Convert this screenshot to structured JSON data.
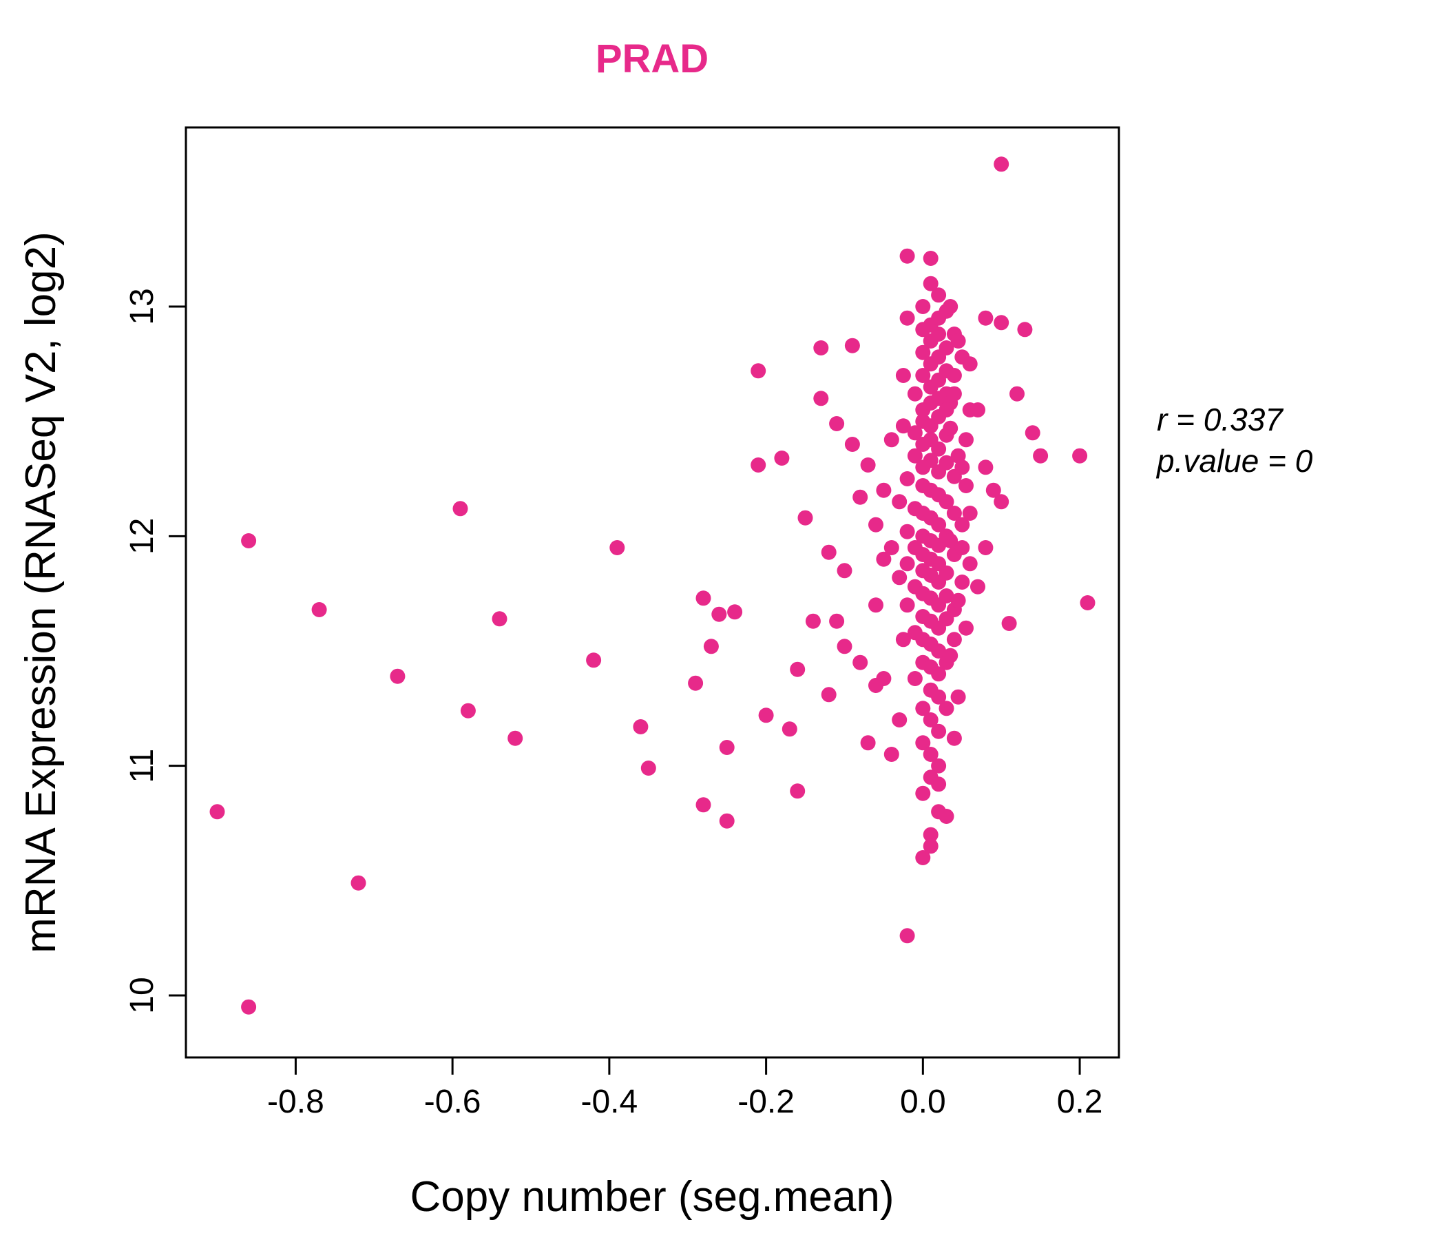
{
  "chart_data": {
    "type": "scatter",
    "title": "PRAD",
    "title_color": "#E7298A",
    "xlabel": "Copy number (seg.mean)",
    "ylabel": "mRNA Expression (RNASeq V2, log2)",
    "xlim": [
      -0.94,
      0.25
    ],
    "ylim": [
      9.73,
      13.78
    ],
    "xticks": [
      -0.8,
      -0.6,
      -0.4,
      -0.2,
      0.0,
      0.2
    ],
    "xtick_labels": [
      "-0.8",
      "-0.6",
      "-0.4",
      "-0.2",
      "0.0",
      "0.2"
    ],
    "yticks": [
      10,
      11,
      12,
      13
    ],
    "ytick_labels": [
      "10",
      "11",
      "12",
      "13"
    ],
    "grid": false,
    "legend_position": "none",
    "point_color": "#E7298A",
    "annotation": {
      "line1": "r = 0.337",
      "line2": "p.value = 0"
    },
    "points": [
      [
        -0.9,
        10.8
      ],
      [
        -0.86,
        9.95
      ],
      [
        -0.86,
        11.98
      ],
      [
        -0.77,
        11.68
      ],
      [
        -0.72,
        10.49
      ],
      [
        -0.67,
        11.39
      ],
      [
        -0.59,
        12.12
      ],
      [
        -0.58,
        11.24
      ],
      [
        -0.54,
        11.64
      ],
      [
        -0.52,
        11.12
      ],
      [
        -0.42,
        11.46
      ],
      [
        -0.39,
        11.95
      ],
      [
        -0.36,
        11.17
      ],
      [
        -0.35,
        10.99
      ],
      [
        -0.29,
        11.36
      ],
      [
        -0.28,
        11.73
      ],
      [
        -0.28,
        10.83
      ],
      [
        -0.27,
        11.52
      ],
      [
        -0.26,
        11.66
      ],
      [
        -0.25,
        10.76
      ],
      [
        -0.25,
        11.08
      ],
      [
        -0.24,
        11.67
      ],
      [
        -0.21,
        12.72
      ],
      [
        -0.21,
        12.31
      ],
      [
        -0.2,
        11.22
      ],
      [
        -0.18,
        12.34
      ],
      [
        -0.17,
        11.16
      ],
      [
        -0.16,
        10.89
      ],
      [
        -0.16,
        11.42
      ],
      [
        -0.15,
        12.08
      ],
      [
        -0.14,
        11.63
      ],
      [
        -0.13,
        12.82
      ],
      [
        -0.13,
        12.6
      ],
      [
        -0.12,
        11.93
      ],
      [
        -0.12,
        11.31
      ],
      [
        -0.11,
        12.49
      ],
      [
        -0.11,
        11.63
      ],
      [
        -0.1,
        11.85
      ],
      [
        -0.1,
        11.52
      ],
      [
        -0.09,
        12.83
      ],
      [
        -0.09,
        12.4
      ],
      [
        -0.08,
        11.45
      ],
      [
        -0.08,
        12.17
      ],
      [
        -0.07,
        11.1
      ],
      [
        -0.07,
        12.31
      ],
      [
        -0.06,
        11.35
      ],
      [
        -0.06,
        11.7
      ],
      [
        -0.06,
        12.05
      ],
      [
        -0.05,
        11.9
      ],
      [
        -0.05,
        12.2
      ],
      [
        -0.05,
        11.38
      ],
      [
        -0.04,
        11.95
      ],
      [
        -0.04,
        12.42
      ],
      [
        -0.04,
        11.05
      ],
      [
        0.0,
        12.5
      ],
      [
        0.01,
        12.48
      ],
      [
        -0.01,
        12.45
      ],
      [
        0.02,
        12.52
      ],
      [
        0.01,
        12.42
      ],
      [
        0.0,
        12.4
      ],
      [
        0.02,
        12.38
      ],
      [
        0.03,
        12.44
      ],
      [
        -0.01,
        12.35
      ],
      [
        0.01,
        12.33
      ],
      [
        0.0,
        12.3
      ],
      [
        0.02,
        12.28
      ],
      [
        0.03,
        12.32
      ],
      [
        0.04,
        12.26
      ],
      [
        -0.02,
        12.25
      ],
      [
        0.0,
        12.22
      ],
      [
        0.01,
        12.2
      ],
      [
        0.02,
        12.18
      ],
      [
        0.03,
        12.15
      ],
      [
        -0.01,
        12.12
      ],
      [
        0.0,
        12.1
      ],
      [
        0.01,
        12.08
      ],
      [
        0.02,
        12.05
      ],
      [
        0.04,
        12.1
      ],
      [
        0.05,
        12.05
      ],
      [
        -0.02,
        12.02
      ],
      [
        0.0,
        12.0
      ],
      [
        0.01,
        11.98
      ],
      [
        0.02,
        11.96
      ],
      [
        0.03,
        12.0
      ],
      [
        -0.01,
        11.95
      ],
      [
        0.0,
        11.92
      ],
      [
        0.01,
        11.9
      ],
      [
        0.02,
        11.88
      ],
      [
        0.04,
        11.92
      ],
      [
        -0.02,
        11.88
      ],
      [
        0.0,
        11.85
      ],
      [
        0.01,
        11.83
      ],
      [
        0.02,
        11.8
      ],
      [
        0.03,
        11.84
      ],
      [
        0.05,
        11.8
      ],
      [
        -0.01,
        11.78
      ],
      [
        0.0,
        11.75
      ],
      [
        0.01,
        11.73
      ],
      [
        0.02,
        11.7
      ],
      [
        0.03,
        11.74
      ],
      [
        0.04,
        11.68
      ],
      [
        -0.02,
        11.7
      ],
      [
        0.0,
        11.65
      ],
      [
        0.01,
        11.63
      ],
      [
        0.02,
        11.6
      ],
      [
        0.03,
        11.64
      ],
      [
        -0.01,
        11.58
      ],
      [
        0.0,
        11.55
      ],
      [
        0.01,
        11.53
      ],
      [
        0.02,
        11.5
      ],
      [
        0.04,
        11.55
      ],
      [
        0.0,
        11.45
      ],
      [
        0.01,
        11.43
      ],
      [
        0.02,
        11.4
      ],
      [
        0.03,
        11.45
      ],
      [
        -0.01,
        11.38
      ],
      [
        0.01,
        11.33
      ],
      [
        0.02,
        11.3
      ],
      [
        0.0,
        11.25
      ],
      [
        0.01,
        11.2
      ],
      [
        0.03,
        11.25
      ],
      [
        0.02,
        11.15
      ],
      [
        0.0,
        11.1
      ],
      [
        0.01,
        11.05
      ],
      [
        0.02,
        11.0
      ],
      [
        0.01,
        10.95
      ],
      [
        0.0,
        10.88
      ],
      [
        0.02,
        10.8
      ],
      [
        0.01,
        10.7
      ],
      [
        0.0,
        10.6
      ],
      [
        -0.02,
        10.26
      ],
      [
        0.0,
        12.55
      ],
      [
        0.01,
        12.58
      ],
      [
        0.02,
        12.6
      ],
      [
        0.03,
        12.62
      ],
      [
        -0.01,
        12.62
      ],
      [
        0.01,
        12.65
      ],
      [
        0.02,
        12.68
      ],
      [
        0.0,
        12.7
      ],
      [
        0.03,
        12.72
      ],
      [
        0.04,
        12.7
      ],
      [
        0.01,
        12.75
      ],
      [
        0.02,
        12.78
      ],
      [
        0.0,
        12.8
      ],
      [
        0.03,
        12.82
      ],
      [
        0.05,
        12.78
      ],
      [
        0.01,
        12.85
      ],
      [
        0.02,
        12.88
      ],
      [
        0.0,
        12.9
      ],
      [
        0.04,
        12.88
      ],
      [
        0.01,
        12.92
      ],
      [
        0.02,
        12.95
      ],
      [
        0.03,
        12.98
      ],
      [
        0.0,
        13.0
      ],
      [
        0.02,
        13.05
      ],
      [
        0.01,
        13.1
      ],
      [
        -0.02,
        13.22
      ],
      [
        0.01,
        13.21
      ],
      [
        -0.02,
        12.95
      ],
      [
        0.035,
        12.47
      ],
      [
        0.045,
        12.35
      ],
      [
        -0.025,
        12.48
      ],
      [
        0.055,
        12.22
      ],
      [
        0.035,
        11.98
      ],
      [
        -0.03,
        11.82
      ],
      [
        0.045,
        11.72
      ],
      [
        0.055,
        11.6
      ],
      [
        -0.025,
        11.55
      ],
      [
        0.035,
        11.48
      ],
      [
        0.045,
        11.3
      ],
      [
        -0.03,
        12.15
      ],
      [
        0.055,
        12.42
      ],
      [
        0.035,
        12.58
      ],
      [
        -0.025,
        12.7
      ],
      [
        0.045,
        12.85
      ],
      [
        0.035,
        13.0
      ],
      [
        0.06,
        11.88
      ],
      [
        0.06,
        12.1
      ],
      [
        0.06,
        12.55
      ],
      [
        -0.03,
        11.2
      ],
      [
        0.04,
        11.12
      ],
      [
        0.02,
        10.92
      ],
      [
        0.03,
        10.78
      ],
      [
        0.01,
        10.65
      ],
      [
        0.05,
        11.95
      ],
      [
        0.05,
        12.3
      ],
      [
        0.06,
        12.75
      ],
      [
        0.04,
        12.62
      ],
      [
        0.03,
        12.55
      ],
      [
        0.07,
        12.55
      ],
      [
        0.07,
        11.78
      ],
      [
        0.08,
        12.3
      ],
      [
        0.08,
        11.95
      ],
      [
        0.09,
        12.2
      ],
      [
        0.1,
        13.62
      ],
      [
        0.1,
        12.15
      ],
      [
        0.11,
        11.62
      ],
      [
        0.12,
        12.62
      ],
      [
        0.13,
        12.9
      ],
      [
        0.14,
        12.45
      ],
      [
        0.15,
        12.35
      ],
      [
        0.2,
        12.35
      ],
      [
        0.21,
        11.71
      ],
      [
        0.08,
        12.95
      ],
      [
        0.1,
        12.93
      ]
    ]
  }
}
